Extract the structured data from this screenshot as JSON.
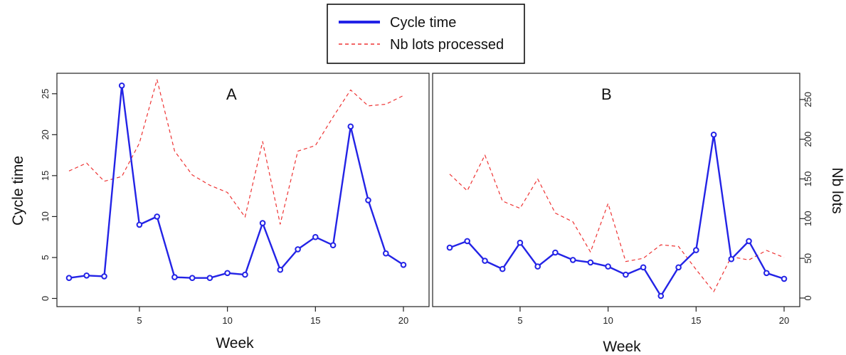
{
  "legend": {
    "items": [
      {
        "label": "Cycle time",
        "color": "#2323e6",
        "style": "solid"
      },
      {
        "label": "Nb lots processed",
        "color": "#ee3333",
        "style": "dashed"
      }
    ]
  },
  "axes": {
    "x_title": "Week",
    "y_left_title": "Cycle time",
    "y_right_title": "Nb lots"
  },
  "chart_data": [
    {
      "type": "line",
      "panel": "A",
      "x": [
        1,
        2,
        3,
        4,
        5,
        6,
        7,
        8,
        9,
        10,
        11,
        12,
        13,
        14,
        15,
        16,
        17,
        18,
        19,
        20
      ],
      "xticks": [
        5,
        10,
        15,
        20
      ],
      "xlabel": "Week",
      "ylabel": "Cycle time",
      "ylim": [
        -1,
        27.5
      ],
      "yticks": [
        0,
        5,
        10,
        15,
        20,
        25
      ],
      "y2label": "Nb lots",
      "y2lim": [
        -10.8,
        283
      ],
      "y2ticks": [
        0,
        50,
        100,
        150,
        200,
        250
      ],
      "series": [
        {
          "name": "Cycle time",
          "axis": "left",
          "color": "#2323e6",
          "markers": true,
          "values": [
            2.5,
            2.8,
            2.7,
            26,
            9,
            10,
            2.6,
            2.5,
            2.5,
            3.1,
            2.9,
            9.2,
            3.5,
            6,
            7.5,
            6.5,
            21,
            12,
            5.5,
            4.1
          ]
        },
        {
          "name": "Nb lots processed",
          "axis": "right",
          "color": "#ee3333",
          "dashed": true,
          "values": [
            160,
            170,
            147,
            153,
            195,
            275,
            185,
            155,
            142,
            133,
            102,
            197,
            93,
            185,
            192,
            228,
            262,
            242,
            244,
            255
          ]
        }
      ]
    },
    {
      "type": "line",
      "panel": "B",
      "x": [
        1,
        2,
        3,
        4,
        5,
        6,
        7,
        8,
        9,
        10,
        11,
        12,
        13,
        14,
        15,
        16,
        17,
        18,
        19,
        20
      ],
      "xticks": [
        5,
        10,
        15,
        20
      ],
      "xlabel": "Week",
      "ylim": [
        -1,
        27.5
      ],
      "y2label": "Nb lots",
      "y2lim": [
        -10.8,
        283
      ],
      "y2ticks": [
        0,
        50,
        100,
        150,
        200,
        250
      ],
      "series": [
        {
          "name": "Cycle time",
          "axis": "left",
          "color": "#2323e6",
          "markers": true,
          "values": [
            6.2,
            7.0,
            4.6,
            3.6,
            6.8,
            3.9,
            5.6,
            4.7,
            4.4,
            3.9,
            2.9,
            3.8,
            0.3,
            3.8,
            5.9,
            20,
            4.8,
            7.0,
            3.1,
            2.4
          ]
        },
        {
          "name": "Nb lots processed",
          "axis": "right",
          "color": "#ee3333",
          "dashed": true,
          "values": [
            156,
            135,
            180,
            122,
            113,
            150,
            107,
            96,
            58,
            119,
            46,
            50,
            67,
            65,
            36,
            8,
            52,
            48,
            60,
            51
          ]
        }
      ]
    }
  ]
}
